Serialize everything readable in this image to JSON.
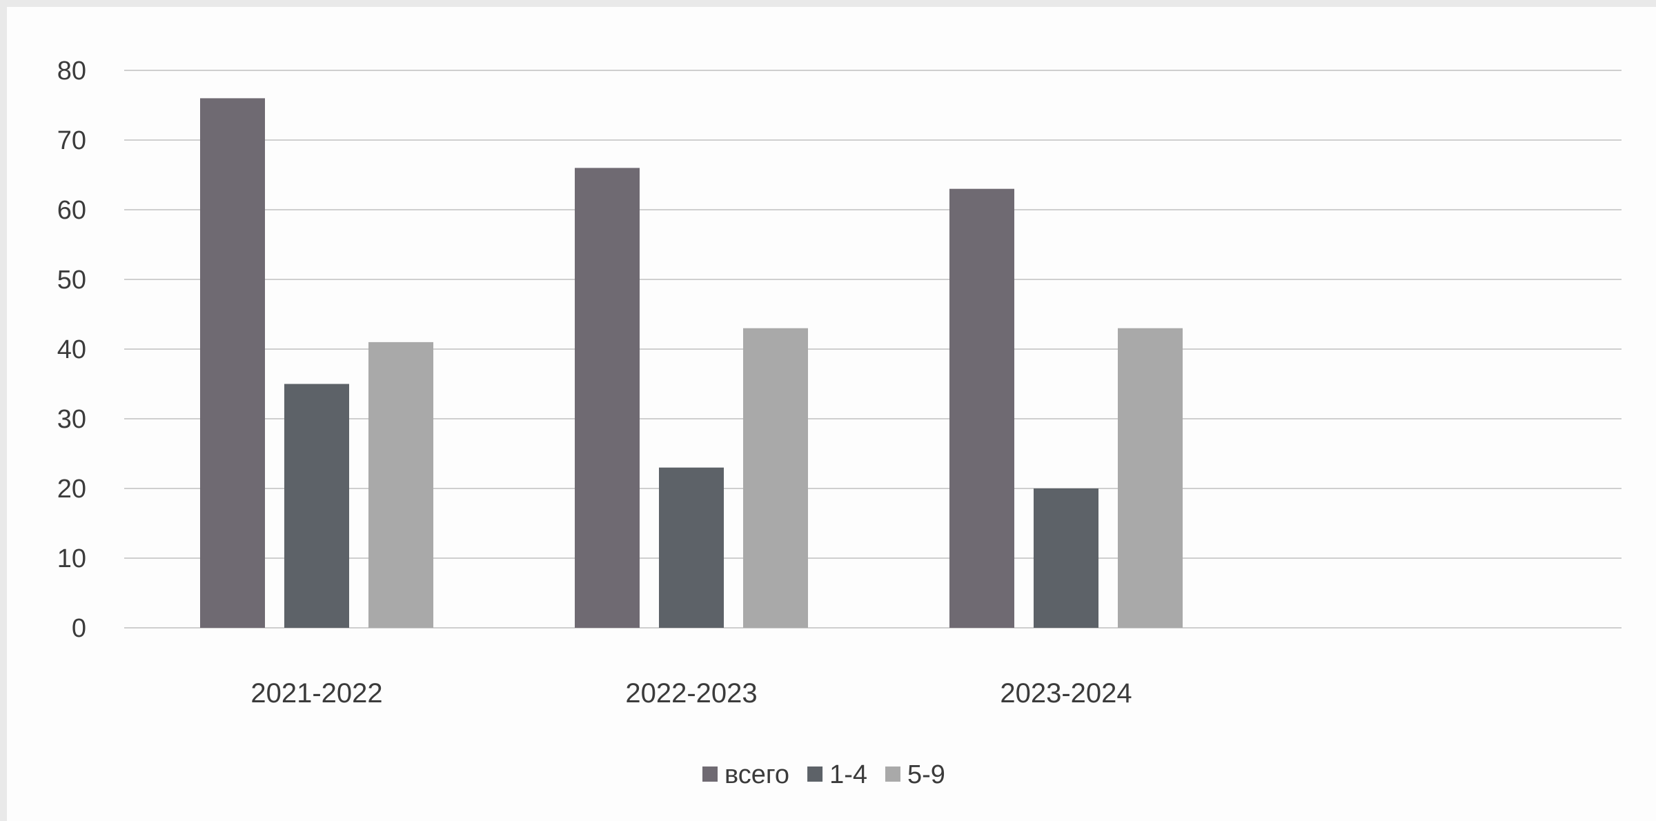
{
  "chart_data": {
    "type": "bar",
    "title": "",
    "xlabel": "",
    "ylabel": "",
    "categories": [
      "2021-2022",
      "2022-2023",
      "2023-2024"
    ],
    "series": [
      {
        "name": "всего",
        "values": [
          76,
          66,
          63
        ],
        "color": "#6f6a72"
      },
      {
        "name": "1-4",
        "values": [
          35,
          23,
          20
        ],
        "color": "#5d6268"
      },
      {
        "name": "5-9",
        "values": [
          41,
          43,
          43
        ],
        "color": "#a9a9a9"
      }
    ],
    "ylim": [
      0,
      80
    ],
    "yticks": [
      0,
      10,
      20,
      30,
      40,
      50,
      60,
      70,
      80
    ],
    "grid": true,
    "legend_position": "bottom-center"
  }
}
